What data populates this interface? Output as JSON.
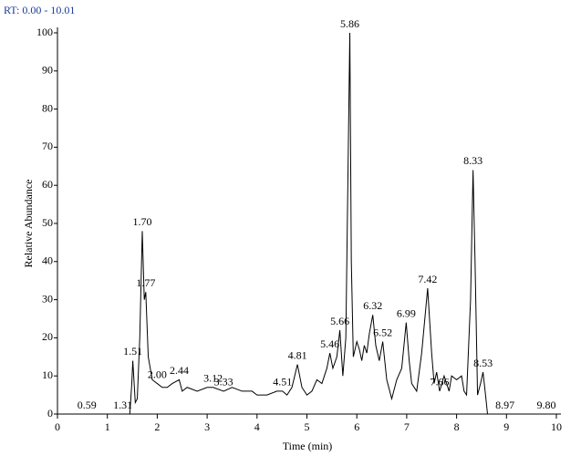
{
  "chart_data": {
    "type": "line",
    "header": "RT: 0.00 - 10.01",
    "xlabel": "Time (min)",
    "ylabel": "Relative Abundance",
    "xlim": [
      0,
      10
    ],
    "ylim": [
      0,
      100
    ],
    "xticks": [
      0,
      1,
      2,
      3,
      4,
      5,
      6,
      7,
      8,
      9,
      10
    ],
    "yticks": [
      0,
      10,
      20,
      30,
      40,
      50,
      60,
      70,
      80,
      90,
      100
    ],
    "color": "#000000",
    "x": [
      0,
      1.45,
      1.49,
      1.51,
      1.56,
      1.6,
      1.65,
      1.7,
      1.74,
      1.77,
      1.82,
      1.9,
      2.0,
      2.1,
      2.2,
      2.3,
      2.44,
      2.5,
      2.6,
      2.8,
      3.0,
      3.12,
      3.33,
      3.5,
      3.7,
      3.9,
      4.0,
      4.2,
      4.4,
      4.51,
      4.6,
      4.7,
      4.81,
      4.9,
      5.0,
      5.1,
      5.2,
      5.3,
      5.4,
      5.46,
      5.52,
      5.6,
      5.66,
      5.72,
      5.78,
      5.82,
      5.86,
      5.89,
      5.93,
      6.0,
      6.05,
      6.1,
      6.15,
      6.2,
      6.25,
      6.32,
      6.38,
      6.45,
      6.52,
      6.6,
      6.7,
      6.8,
      6.9,
      6.99,
      7.05,
      7.1,
      7.2,
      7.3,
      7.42,
      7.5,
      7.55,
      7.6,
      7.66,
      7.75,
      7.85,
      7.9,
      8.0,
      8.1,
      8.15,
      8.2,
      8.28,
      8.33,
      8.37,
      8.42,
      8.48,
      8.53,
      8.58,
      8.62,
      10
    ],
    "values": [
      0,
      0,
      8,
      14,
      3,
      4,
      20,
      48,
      30,
      32,
      15,
      9,
      8,
      7,
      7,
      8,
      9,
      6,
      7,
      6,
      7,
      7,
      6,
      7,
      6,
      6,
      5,
      5,
      6,
      6,
      5,
      7,
      13,
      7,
      5,
      6,
      9,
      8,
      12,
      16,
      12,
      15,
      22,
      10,
      20,
      60,
      100,
      40,
      15,
      19,
      17,
      14,
      18,
      16,
      21,
      26,
      18,
      14,
      19,
      9,
      4,
      9,
      12,
      24,
      14,
      8,
      6,
      16,
      33,
      16,
      8,
      11,
      6,
      10,
      6,
      10,
      9,
      10,
      6,
      5,
      30,
      64,
      40,
      5,
      8,
      11,
      5,
      0,
      0
    ],
    "peaks": {
      "x": [
        0.59,
        1.31,
        1.51,
        1.7,
        1.77,
        2.0,
        2.44,
        3.12,
        3.33,
        4.51,
        4.81,
        5.46,
        5.66,
        5.86,
        6.32,
        6.52,
        6.99,
        7.42,
        7.66,
        8.33,
        8.53,
        8.97,
        9.8
      ],
      "y": [
        0,
        0,
        14,
        48,
        32,
        8,
        9,
        7,
        6,
        6,
        13,
        16,
        22,
        100,
        26,
        19,
        24,
        33,
        6,
        64,
        11,
        0,
        0
      ],
      "value_labels": [
        "0.59",
        "1.31",
        "1.51",
        "1.70",
        "1.77",
        "2.00",
        "2.44",
        "3.12",
        "3.33",
        "4.51",
        "4.81",
        "5.46",
        "5.66",
        "5.86",
        "6.32",
        "6.52",
        "6.99",
        "7.42",
        "7.66",
        "8.33",
        "8.53",
        "8.97",
        "9.80"
      ]
    }
  }
}
